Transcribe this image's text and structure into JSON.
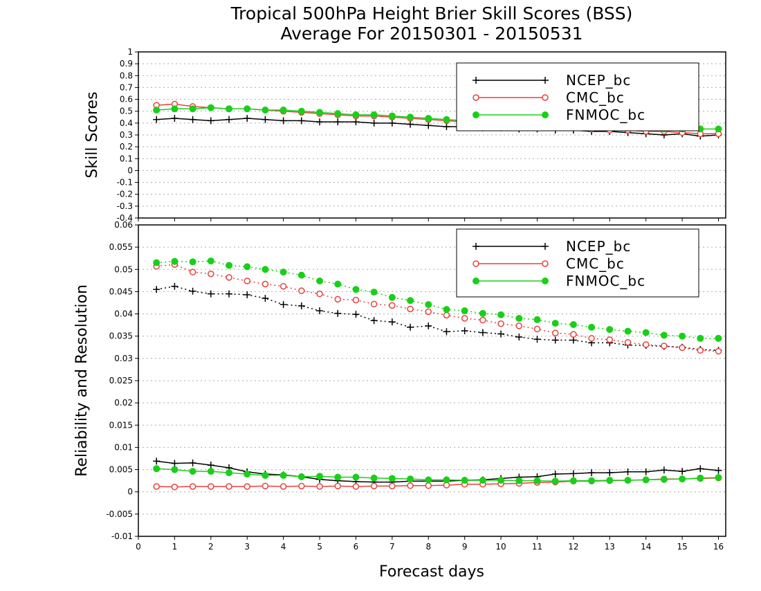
{
  "title_line1": "Tropical 500hPa Height Brier Skill Scores (BSS)",
  "title_line2": "Average For 20150301 - 20150531",
  "xlabel": "Forecast days",
  "colors": {
    "NCEP_bc": "#000000",
    "CMC_bc": "#e8403c",
    "FNMOC_bc": "#18d018"
  },
  "chart_data": [
    {
      "type": "line",
      "ylabel": "Skill Scores",
      "xlim": [
        0,
        16.2
      ],
      "ylim": [
        -0.4,
        1
      ],
      "x_ticks": [
        0,
        1,
        2,
        3,
        4,
        5,
        6,
        7,
        8,
        9,
        10,
        11,
        12,
        13,
        14,
        15,
        16
      ],
      "y_ticks": [
        -0.4,
        -0.3,
        -0.2,
        -0.1,
        0,
        0.1,
        0.2,
        0.3,
        0.4,
        0.5,
        0.6,
        0.7,
        0.8,
        0.9,
        1
      ],
      "grid": true,
      "legend_position": "top-right",
      "x": [
        0.5,
        1,
        1.5,
        2,
        2.5,
        3,
        3.5,
        4,
        4.5,
        5,
        5.5,
        6,
        6.5,
        7,
        7.5,
        8,
        8.5,
        9,
        9.5,
        10,
        10.5,
        11,
        11.5,
        12,
        12.5,
        13,
        13.5,
        14,
        14.5,
        15,
        15.5,
        16
      ],
      "series": [
        {
          "name": "NCEP_bc",
          "marker": "plus",
          "style": "solid",
          "values": [
            0.43,
            0.44,
            0.43,
            0.42,
            0.43,
            0.44,
            0.43,
            0.42,
            0.42,
            0.41,
            0.41,
            0.41,
            0.4,
            0.4,
            0.39,
            0.38,
            0.37,
            0.37,
            0.36,
            0.36,
            0.35,
            0.35,
            0.34,
            0.34,
            0.33,
            0.33,
            0.32,
            0.31,
            0.3,
            0.31,
            0.29,
            0.3
          ]
        },
        {
          "name": "CMC_bc",
          "marker": "circle-open",
          "style": "solid",
          "values": [
            0.55,
            0.56,
            0.54,
            0.53,
            0.52,
            0.52,
            0.51,
            0.5,
            0.49,
            0.48,
            0.47,
            0.46,
            0.46,
            0.45,
            0.44,
            0.43,
            0.42,
            0.41,
            0.4,
            0.39,
            0.38,
            0.37,
            0.37,
            0.36,
            0.35,
            0.34,
            0.34,
            0.33,
            0.33,
            0.32,
            0.31,
            0.31
          ]
        },
        {
          "name": "FNMOC_bc",
          "marker": "circle-filled",
          "style": "solid",
          "values": [
            0.51,
            0.52,
            0.52,
            0.53,
            0.52,
            0.52,
            0.51,
            0.51,
            0.5,
            0.49,
            0.48,
            0.47,
            0.47,
            0.46,
            0.45,
            0.44,
            0.43,
            0.42,
            0.41,
            0.4,
            0.4,
            0.39,
            0.38,
            0.38,
            0.37,
            0.37,
            0.36,
            0.36,
            0.35,
            0.35,
            0.35,
            0.35
          ]
        }
      ]
    },
    {
      "type": "line",
      "ylabel": "Reliability and Resolution",
      "xlim": [
        0,
        16.2
      ],
      "ylim": [
        -0.01,
        0.06
      ],
      "x_ticks": [
        0,
        1,
        2,
        3,
        4,
        5,
        6,
        7,
        8,
        9,
        10,
        11,
        12,
        13,
        14,
        15,
        16
      ],
      "y_ticks": [
        -0.01,
        -0.005,
        0,
        0.005,
        0.01,
        0.015,
        0.02,
        0.025,
        0.03,
        0.035,
        0.04,
        0.045,
        0.05,
        0.055,
        0.06
      ],
      "y_tick_labels": [
        "-0.01",
        "-0.005",
        "0",
        "0.005",
        "0.01",
        "0.015",
        "0.02",
        "0.025",
        "0.03",
        "0.035",
        "0.04",
        "0.045",
        "0.05",
        "0.055",
        "0.06"
      ],
      "grid": true,
      "legend_position": "top-right",
      "x": [
        0.5,
        1,
        1.5,
        2,
        2.5,
        3,
        3.5,
        4,
        4.5,
        5,
        5.5,
        6,
        6.5,
        7,
        7.5,
        8,
        8.5,
        9,
        9.5,
        10,
        10.5,
        11,
        11.5,
        12,
        12.5,
        13,
        13.5,
        14,
        14.5,
        15,
        15.5,
        16
      ],
      "series": [
        {
          "name": "NCEP_bc",
          "marker": "plus",
          "style": "dotted",
          "group": "resolution",
          "values": [
            0.0455,
            0.0462,
            0.0451,
            0.0445,
            0.0445,
            0.0443,
            0.0435,
            0.0421,
            0.0418,
            0.0407,
            0.0401,
            0.0399,
            0.0385,
            0.0382,
            0.037,
            0.0373,
            0.036,
            0.0362,
            0.0358,
            0.0355,
            0.0348,
            0.0343,
            0.0341,
            0.0341,
            0.0335,
            0.0335,
            0.033,
            0.0329,
            0.0327,
            0.0325,
            0.032,
            0.0318
          ]
        },
        {
          "name": "CMC_bc",
          "marker": "circle-open",
          "style": "dotted",
          "group": "resolution",
          "values": [
            0.0507,
            0.0511,
            0.0494,
            0.049,
            0.0482,
            0.0474,
            0.0467,
            0.0462,
            0.0452,
            0.0445,
            0.0433,
            0.0431,
            0.0422,
            0.0419,
            0.0411,
            0.0405,
            0.0397,
            0.039,
            0.0386,
            0.0378,
            0.0373,
            0.0366,
            0.0357,
            0.0354,
            0.0345,
            0.0342,
            0.0336,
            0.0331,
            0.0328,
            0.0324,
            0.0318,
            0.0316
          ]
        },
        {
          "name": "FNMOC_bc",
          "marker": "circle-filled",
          "style": "dotted",
          "group": "resolution",
          "values": [
            0.0515,
            0.0518,
            0.0517,
            0.0519,
            0.0509,
            0.0506,
            0.05,
            0.0494,
            0.0487,
            0.0474,
            0.0467,
            0.0455,
            0.0449,
            0.0437,
            0.043,
            0.0421,
            0.041,
            0.0407,
            0.0401,
            0.0398,
            0.039,
            0.0387,
            0.0379,
            0.0376,
            0.037,
            0.0365,
            0.0361,
            0.0358,
            0.0352,
            0.035,
            0.0345,
            0.0345
          ]
        },
        {
          "name": "NCEP_bc",
          "marker": "plus",
          "style": "solid",
          "group": "reliability",
          "values": [
            0.0069,
            0.0064,
            0.0065,
            0.006,
            0.0054,
            0.0045,
            0.004,
            0.0038,
            0.0034,
            0.0028,
            0.0025,
            0.0023,
            0.0022,
            0.0022,
            0.0024,
            0.0024,
            0.0024,
            0.0026,
            0.0027,
            0.003,
            0.0033,
            0.0034,
            0.004,
            0.0041,
            0.0043,
            0.0043,
            0.0045,
            0.0045,
            0.0049,
            0.0046,
            0.0052,
            0.0048
          ]
        },
        {
          "name": "CMC_bc",
          "marker": "circle-open",
          "style": "solid",
          "group": "reliability",
          "values": [
            0.0012,
            0.0011,
            0.0012,
            0.0012,
            0.0012,
            0.0012,
            0.0013,
            0.0012,
            0.0013,
            0.0012,
            0.0013,
            0.0012,
            0.0013,
            0.0013,
            0.0014,
            0.0014,
            0.0015,
            0.0017,
            0.0017,
            0.0018,
            0.0019,
            0.0021,
            0.0022,
            0.0024,
            0.0024,
            0.0025,
            0.0026,
            0.0027,
            0.0029,
            0.0029,
            0.003,
            0.0031
          ]
        },
        {
          "name": "FNMOC_bc",
          "marker": "circle-filled",
          "style": "solid",
          "group": "reliability",
          "values": [
            0.0052,
            0.005,
            0.0046,
            0.0046,
            0.0043,
            0.004,
            0.0037,
            0.0037,
            0.0034,
            0.0035,
            0.0033,
            0.0033,
            0.0031,
            0.003,
            0.0029,
            0.0027,
            0.0027,
            0.0026,
            0.0026,
            0.0026,
            0.0025,
            0.0025,
            0.0024,
            0.0025,
            0.0025,
            0.0026,
            0.0026,
            0.0027,
            0.0028,
            0.0029,
            0.0031,
            0.0032
          ]
        }
      ]
    }
  ]
}
